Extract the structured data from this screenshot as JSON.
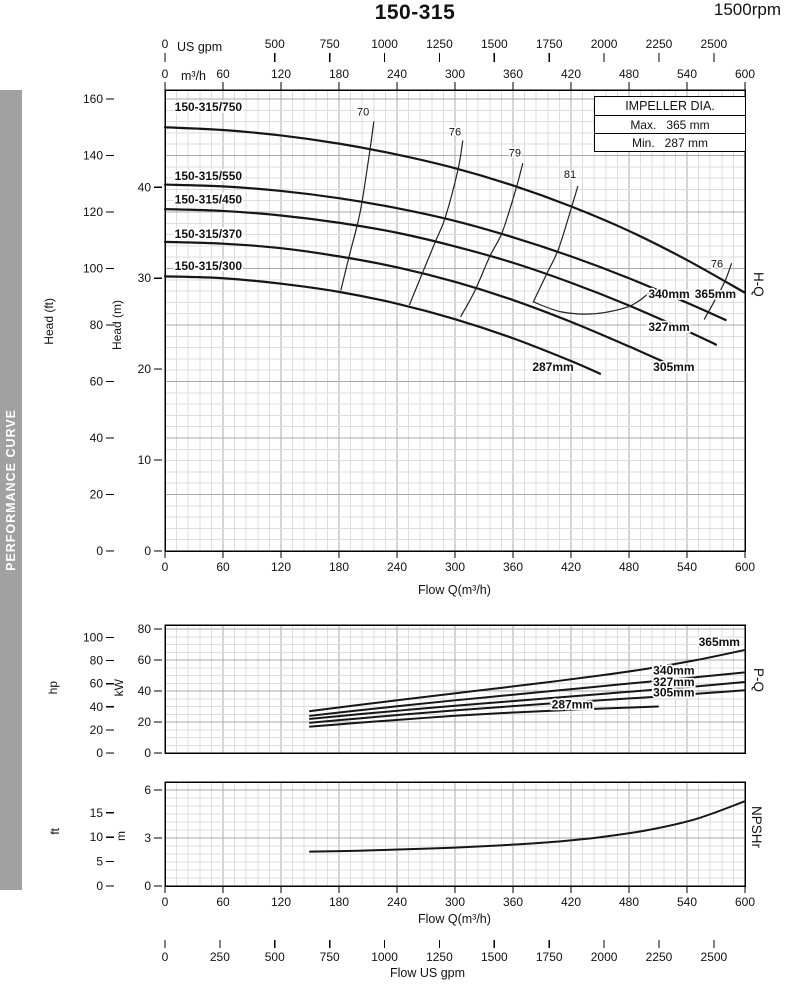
{
  "page": {
    "title": "150-315",
    "rpm": "1500rpm",
    "sidebar": "PERFORMANCE CURVE"
  },
  "impeller_box": {
    "title": "IMPELLER DIA.",
    "max_label": "Max.",
    "max_value": "365 mm",
    "min_label": "Min.",
    "min_value": "287 mm"
  },
  "section_labels": {
    "hq": "H-Q",
    "pq": "P-Q",
    "npshr": "NPSHr"
  },
  "axis_labels": {
    "us_gpm": "US gpm",
    "m3h": "m³/h",
    "head_ft": "Head (ft)",
    "head_m": "Head (m)",
    "flow_q": "Flow Q(m³/h)",
    "hp": "hp",
    "kw": "kW",
    "ft": "ft",
    "m": "m",
    "flow_us_gpm": "Flow US gpm"
  },
  "chart_data": [
    {
      "id": "hq",
      "type": "line",
      "title": "Head vs Flow (H-Q), 150-315 pump at 1500rpm",
      "x": {
        "label": "Flow Q(m³/h)",
        "min": 0,
        "max": 600,
        "ticks": [
          0,
          60,
          120,
          180,
          240,
          300,
          360,
          420,
          480,
          540,
          600
        ]
      },
      "x_top_gpm": {
        "label": "US gpm",
        "ticks": [
          0,
          500,
          750,
          1000,
          1250,
          1500,
          1750,
          2000,
          2250,
          2500
        ],
        "gpm_per_m3h": 4.4029
      },
      "y_ft": {
        "label": "Head (ft)",
        "min": 0,
        "max": 163.2,
        "ticks": [
          0,
          20,
          40,
          60,
          80,
          100,
          120,
          140,
          160
        ]
      },
      "y_m": {
        "label": "Head (m)",
        "min": 0,
        "max": 50.7,
        "ticks": [
          0,
          10,
          20,
          30,
          40
        ]
      },
      "grid": "on",
      "series": [
        {
          "name": "150-315/750",
          "dia": "365mm",
          "points": [
            [
              0,
              46.6
            ],
            [
              60,
              46.3
            ],
            [
              120,
              45.7
            ],
            [
              180,
              44.8
            ],
            [
              240,
              43.6
            ],
            [
              300,
              42.1
            ],
            [
              360,
              40.2
            ],
            [
              420,
              37.9
            ],
            [
              480,
              35.2
            ],
            [
              540,
              32.0
            ],
            [
              600,
              28.4
            ]
          ],
          "model_label_at": [
            10,
            48.4
          ],
          "dia_label_at": [
            548,
            27.8
          ]
        },
        {
          "name": "150-315/550",
          "dia": "340mm",
          "points": [
            [
              0,
              40.3
            ],
            [
              60,
              40.1
            ],
            [
              120,
              39.6
            ],
            [
              180,
              38.8
            ],
            [
              240,
              37.7
            ],
            [
              300,
              36.3
            ],
            [
              360,
              34.5
            ],
            [
              420,
              32.4
            ],
            [
              480,
              30.0
            ],
            [
              540,
              27.3
            ],
            [
              580,
              25.4
            ]
          ],
          "model_label_at": [
            10,
            40.8
          ],
          "dia_label_at": [
            500,
            27.8
          ]
        },
        {
          "name": "150-315/450",
          "dia": "327mm",
          "points": [
            [
              0,
              37.6
            ],
            [
              60,
              37.4
            ],
            [
              120,
              36.9
            ],
            [
              180,
              36.1
            ],
            [
              240,
              35.0
            ],
            [
              300,
              33.5
            ],
            [
              360,
              31.7
            ],
            [
              420,
              29.5
            ],
            [
              480,
              27.0
            ],
            [
              540,
              24.2
            ],
            [
              570,
              22.7
            ]
          ],
          "model_label_at": [
            10,
            38.2
          ],
          "dia_label_at": [
            500,
            24.2
          ]
        },
        {
          "name": "150-315/370",
          "dia": "305mm",
          "points": [
            [
              0,
              34.0
            ],
            [
              60,
              33.8
            ],
            [
              120,
              33.3
            ],
            [
              180,
              32.4
            ],
            [
              240,
              31.2
            ],
            [
              300,
              29.6
            ],
            [
              360,
              27.6
            ],
            [
              420,
              25.2
            ],
            [
              480,
              22.5
            ],
            [
              520,
              20.6
            ]
          ],
          "model_label_at": [
            10,
            34.4
          ],
          "dia_label_at": [
            505,
            19.8
          ]
        },
        {
          "name": "150-315/300",
          "dia": "287mm",
          "points": [
            [
              0,
              30.2
            ],
            [
              60,
              30.0
            ],
            [
              120,
              29.4
            ],
            [
              180,
              28.5
            ],
            [
              240,
              27.2
            ],
            [
              300,
              25.5
            ],
            [
              360,
              23.4
            ],
            [
              420,
              20.9
            ],
            [
              450,
              19.5
            ]
          ],
          "model_label_at": [
            10,
            30.9
          ],
          "dia_label_at": [
            380,
            19.8
          ]
        }
      ],
      "efficiency": [
        {
          "label": "70",
          "label_at": [
            205,
            47.9
          ],
          "points": [
            [
              216,
              47.2
            ],
            [
              212,
              44.1
            ],
            [
              204,
              38.5
            ],
            [
              199,
              35.9
            ],
            [
              190,
              32.2
            ],
            [
              182,
              28.7
            ]
          ]
        },
        {
          "label": "76",
          "label_at": [
            300,
            45.7
          ],
          "points": [
            [
              308,
              45.1
            ],
            [
              303,
              41.9
            ],
            [
              290,
              36.7
            ],
            [
              280,
              34.1
            ],
            [
              266,
              30.5
            ],
            [
              253,
              27.1
            ]
          ]
        },
        {
          "label": "79",
          "label_at": [
            362,
            43.4
          ],
          "points": [
            [
              370,
              42.6
            ],
            [
              363,
              39.8
            ],
            [
              349,
              35.1
            ],
            [
              336,
              32.4
            ],
            [
              320,
              28.5
            ],
            [
              306,
              25.8
            ]
          ]
        },
        {
          "label": "81",
          "label_at": [
            419,
            41.0
          ],
          "points": [
            [
              427,
              40.1
            ],
            [
              420,
              37.6
            ],
            [
              407,
              33.2
            ],
            [
              395,
              30.5
            ],
            [
              381,
              27.4
            ]
          ]
        },
        {
          "label": "",
          "label_at": [
            0,
            0
          ],
          "points": [
            [
              381,
              27.4
            ],
            [
              410,
              26.3
            ],
            [
              445,
              26.1
            ],
            [
              480,
              26.9
            ],
            [
              500,
              28.3
            ]
          ]
        },
        {
          "label": "76",
          "label_at": [
            571,
            31.2
          ],
          "points": [
            [
              586,
              31.6
            ],
            [
              579,
              29.6
            ],
            [
              569,
              27.6
            ],
            [
              558,
              25.5
            ]
          ]
        }
      ]
    },
    {
      "id": "pq",
      "type": "line",
      "title": "Power vs Flow (P-Q)",
      "x": {
        "min": 0,
        "max": 600
      },
      "y_hp": {
        "label": "hp",
        "ticks": [
          0,
          20,
          40,
          60,
          80,
          100
        ]
      },
      "y_kw": {
        "label": "kW",
        "min": 0,
        "max": 82.6,
        "ticks": [
          0,
          20,
          40,
          60,
          80
        ]
      },
      "grid": "on",
      "series": [
        {
          "name": "365mm",
          "points": [
            [
              150,
              27
            ],
            [
              200,
              31
            ],
            [
              250,
              34.8
            ],
            [
              300,
              38.5
            ],
            [
              350,
              42.2
            ],
            [
              400,
              46
            ],
            [
              450,
              50
            ],
            [
              500,
              54.5
            ],
            [
              550,
              60
            ],
            [
              600,
              66.5
            ]
          ],
          "label_at": [
            552,
            69
          ]
        },
        {
          "name": "340mm",
          "points": [
            [
              150,
              24
            ],
            [
              200,
              27.5
            ],
            [
              250,
              30.8
            ],
            [
              300,
              34
            ],
            [
              350,
              37
            ],
            [
              400,
              40
            ],
            [
              450,
              43
            ],
            [
              500,
              46
            ],
            [
              550,
              49
            ],
            [
              600,
              52
            ]
          ],
          "label_at": [
            505,
            50.5
          ]
        },
        {
          "name": "327mm",
          "points": [
            [
              150,
              22
            ],
            [
              200,
              25
            ],
            [
              250,
              27.8
            ],
            [
              300,
              30.5
            ],
            [
              350,
              33
            ],
            [
              400,
              35.5
            ],
            [
              450,
              38
            ],
            [
              500,
              40.5
            ],
            [
              550,
              43
            ],
            [
              600,
              45.8
            ]
          ],
          "label_at": [
            505,
            43.2
          ]
        },
        {
          "name": "305mm",
          "points": [
            [
              150,
              19.5
            ],
            [
              200,
              22.3
            ],
            [
              250,
              25
            ],
            [
              300,
              27.5
            ],
            [
              350,
              29.8
            ],
            [
              400,
              32
            ],
            [
              450,
              34
            ],
            [
              500,
              36
            ],
            [
              550,
              38.2
            ],
            [
              600,
              40.5
            ]
          ],
          "label_at": [
            505,
            36.3
          ]
        },
        {
          "name": "287mm",
          "points": [
            [
              150,
              17
            ],
            [
              200,
              19.5
            ],
            [
              250,
              21.8
            ],
            [
              300,
              24
            ],
            [
              350,
              25.8
            ],
            [
              400,
              27.3
            ],
            [
              450,
              28.6
            ],
            [
              510,
              30
            ]
          ],
          "label_at": [
            400,
            28.8
          ]
        }
      ]
    },
    {
      "id": "npshr",
      "type": "line",
      "title": "NPSHr vs Flow",
      "x": {
        "label": "Flow Q(m³/h)",
        "min": 0,
        "max": 600,
        "ticks": [
          0,
          60,
          120,
          180,
          240,
          300,
          360,
          420,
          480,
          540,
          600
        ]
      },
      "x_bottom_gpm": {
        "label": "Flow US gpm",
        "ticks": [
          0,
          250,
          500,
          750,
          1000,
          1250,
          1500,
          1750,
          2000,
          2250,
          2500
        ],
        "gpm_per_m3h": 4.4029
      },
      "y_ft": {
        "label": "ft",
        "ticks": [
          0,
          5,
          10,
          15
        ]
      },
      "y_m": {
        "label": "m",
        "min": 0,
        "max": 6.5,
        "ticks": [
          0,
          3,
          6
        ]
      },
      "grid": "on",
      "series": [
        {
          "name": "NPSHr",
          "points": [
            [
              150,
              2.15
            ],
            [
              200,
              2.2
            ],
            [
              250,
              2.3
            ],
            [
              300,
              2.4
            ],
            [
              350,
              2.55
            ],
            [
              400,
              2.75
            ],
            [
              450,
              3.05
            ],
            [
              500,
              3.5
            ],
            [
              550,
              4.2
            ],
            [
              600,
              5.3
            ]
          ]
        }
      ]
    }
  ]
}
